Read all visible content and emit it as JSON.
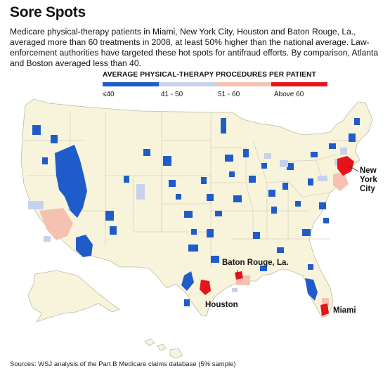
{
  "header": {
    "title": "Sore Spots",
    "intro": "Medicare physical-therapy patients in Miami, New York City, Houston and Baton Rouge, La., averaged more than 60 treatments in 2008, at least 50% higher than the national average. Law-enforcement authorities have targeted these hot spots for antifraud efforts. By comparison, Atlanta and Boston averaged less than 40."
  },
  "legend": {
    "title": "AVERAGE PHYSICAL-THERAPY PROCEDURES PER PATIENT",
    "bins": [
      {
        "label": "≤40",
        "color": "#1f5cc9"
      },
      {
        "label": "41 - 50",
        "color": "#c6d2ec"
      },
      {
        "label": "51 - 60",
        "color": "#f5c2b2"
      },
      {
        "label": "Above 60",
        "color": "#e8121b"
      }
    ]
  },
  "callouts": {
    "new_york": [
      "New",
      "York",
      "City"
    ],
    "baton_rouge": "Baton Rouge, La.",
    "houston": "Houston",
    "miami": "Miami"
  },
  "colors": {
    "land": "#f8f4dc",
    "border": "#cfcbb8",
    "low": "#1f5cc9",
    "mid": "#c6d2ec",
    "midhigh": "#f5c2b2",
    "high": "#e8121b"
  },
  "source": "Sources: WSJ analysis of the Part B Medicare claims database (5% sample)"
}
